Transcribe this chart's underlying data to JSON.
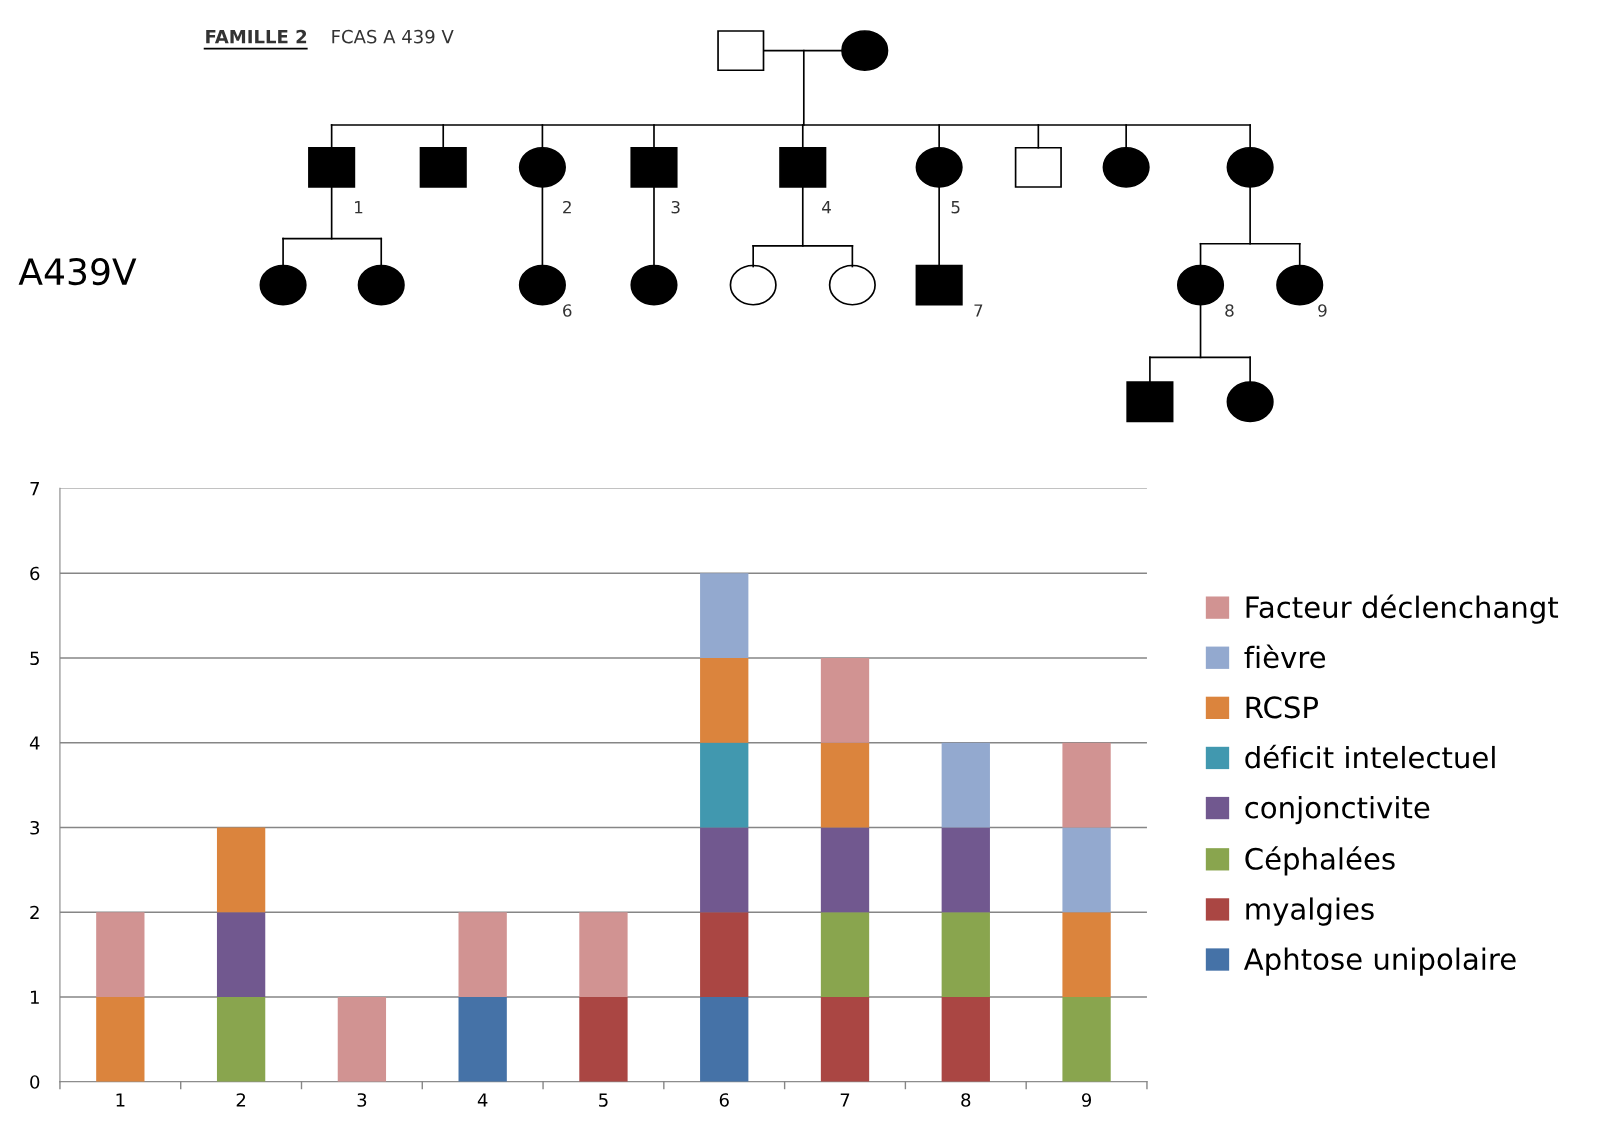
{
  "chart_data": {
    "type": "bar",
    "stacked": true,
    "categories": [
      "1",
      "2",
      "3",
      "4",
      "5",
      "6",
      "7",
      "8",
      "9"
    ],
    "series": [
      {
        "name": "Aphtose unipolaire",
        "color": "#4572a7",
        "values": [
          null,
          null,
          null,
          1,
          null,
          1,
          null,
          null,
          null
        ]
      },
      {
        "name": "myalgies",
        "color": "#aa4643",
        "values": [
          null,
          null,
          null,
          null,
          1,
          1,
          1,
          1,
          null
        ]
      },
      {
        "name": "Céphalées",
        "color": "#89a54e",
        "values": [
          null,
          1,
          null,
          null,
          null,
          null,
          1,
          1,
          1
        ]
      },
      {
        "name": "conjonctivite",
        "color": "#71588f",
        "values": [
          null,
          1,
          null,
          null,
          null,
          1,
          1,
          1,
          null
        ]
      },
      {
        "name": "déficit intelectuel",
        "color": "#4198af",
        "values": [
          null,
          null,
          null,
          null,
          null,
          1,
          null,
          null,
          null
        ]
      },
      {
        "name": "RCSP",
        "color": "#db843d",
        "values": [
          1,
          1,
          null,
          null,
          null,
          1,
          1,
          null,
          1
        ]
      },
      {
        "name": "fièvre",
        "color": "#93a9cf",
        "values": [
          null,
          null,
          null,
          null,
          null,
          1,
          null,
          1,
          1
        ]
      },
      {
        "name": "Facteur déclenchangt",
        "color": "#d19392",
        "values": [
          1,
          null,
          1,
          1,
          1,
          null,
          1,
          null,
          1
        ]
      }
    ],
    "ylim": [
      0,
      7
    ],
    "yticks": [
      0,
      1,
      2,
      3,
      4,
      5,
      6,
      7
    ],
    "grid": "y",
    "legend": "right",
    "annotations": [
      "FAMILLE 2",
      "FCAS A 439 V",
      "A439V",
      "1",
      "2",
      "3",
      "4",
      "5",
      "6",
      "7",
      "8",
      "9"
    ]
  }
}
